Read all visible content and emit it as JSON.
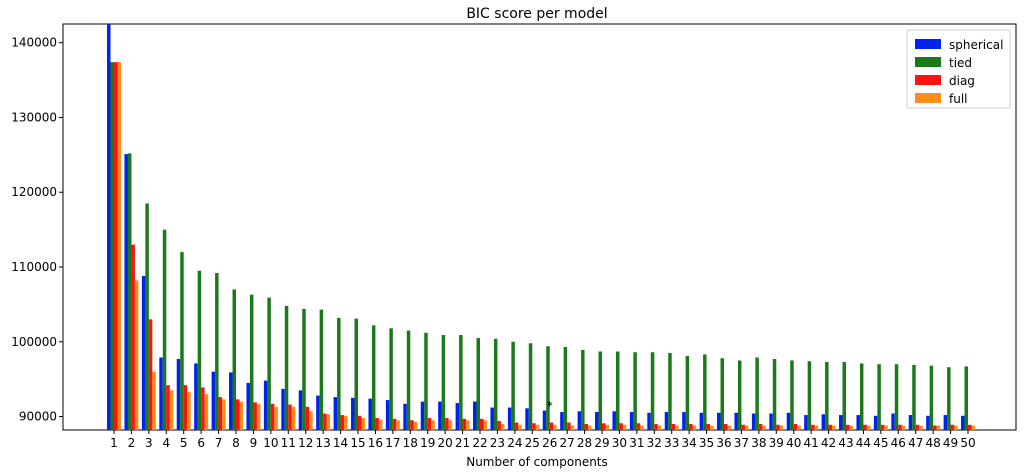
{
  "chart_data": {
    "type": "bar",
    "title": "BIC score per model",
    "xlabel": "Number of components",
    "ylabel": "",
    "ylim": [
      88200,
      142500
    ],
    "yticks": [
      90000,
      100000,
      110000,
      120000,
      130000,
      140000
    ],
    "categories": [
      "1",
      "2",
      "3",
      "4",
      "5",
      "6",
      "7",
      "8",
      "9",
      "10",
      "11",
      "12",
      "13",
      "14",
      "15",
      "16",
      "17",
      "18",
      "19",
      "20",
      "21",
      "22",
      "23",
      "24",
      "25",
      "26",
      "27",
      "28",
      "29",
      "30",
      "31",
      "32",
      "33",
      "34",
      "35",
      "36",
      "37",
      "38",
      "39",
      "40",
      "41",
      "42",
      "43",
      "44",
      "45",
      "46",
      "47",
      "48",
      "49",
      "50"
    ],
    "legend_position": "top-right",
    "grid": false,
    "annotation": {
      "text": "*",
      "category": "26",
      "value": 91700
    },
    "series": [
      {
        "name": "spherical",
        "color": "#0022ee",
        "values": [
          142500,
          125100,
          108800,
          97900,
          97700,
          97100,
          96000,
          95900,
          94500,
          94800,
          93700,
          93500,
          92800,
          92600,
          92500,
          92400,
          92200,
          91700,
          92000,
          92000,
          91800,
          92000,
          91200,
          91200,
          91100,
          90800,
          90600,
          90700,
          90600,
          90700,
          90600,
          90500,
          90600,
          90600,
          90500,
          90500,
          90500,
          90400,
          90400,
          90500,
          90200,
          90300,
          90200,
          90200,
          90100,
          90400,
          90200,
          90100,
          90200,
          90100
        ]
      },
      {
        "name": "tied",
        "color": "#1a7a1a",
        "values": [
          137400,
          125200,
          118500,
          115000,
          112000,
          109500,
          109200,
          107000,
          106300,
          105900,
          104800,
          104400,
          104300,
          103200,
          103100,
          102200,
          101800,
          101500,
          101200,
          100900,
          100900,
          100500,
          100400,
          100000,
          99800,
          99400,
          99300,
          98900,
          98700,
          98700,
          98600,
          98600,
          98500,
          98100,
          98300,
          97800,
          97500,
          97900,
          97700,
          97500,
          97400,
          97300,
          97300,
          97100,
          97000,
          97000,
          96900,
          96800,
          96600,
          96700
        ]
      },
      {
        "name": "diag",
        "color": "#ff1111",
        "values": [
          137400,
          113000,
          103000,
          94200,
          94200,
          93900,
          92600,
          92300,
          91900,
          91700,
          91600,
          91300,
          90400,
          90200,
          90100,
          89800,
          89700,
          89500,
          89800,
          89800,
          89700,
          89700,
          89400,
          89200,
          89100,
          89200,
          89200,
          89000,
          89100,
          89100,
          89100,
          89000,
          89000,
          89000,
          89000,
          89000,
          88900,
          89000,
          88900,
          89000,
          88900,
          88900,
          88900,
          88900,
          88900,
          88900,
          88900,
          88800,
          88900,
          88900
        ]
      },
      {
        "name": "full",
        "color": "#ff8c1a",
        "values": [
          137400,
          108200,
          96000,
          93500,
          93300,
          93000,
          92300,
          92000,
          91700,
          91300,
          91300,
          90700,
          90300,
          90100,
          89800,
          89600,
          89500,
          89300,
          89500,
          89500,
          89500,
          89500,
          89000,
          88900,
          88900,
          88900,
          88800,
          88800,
          88900,
          88900,
          88800,
          88800,
          88800,
          88800,
          88800,
          88800,
          88800,
          88800,
          88800,
          88800,
          88800,
          88800,
          88800,
          88800,
          88800,
          88800,
          88800,
          88800,
          88800,
          88800
        ]
      }
    ]
  }
}
